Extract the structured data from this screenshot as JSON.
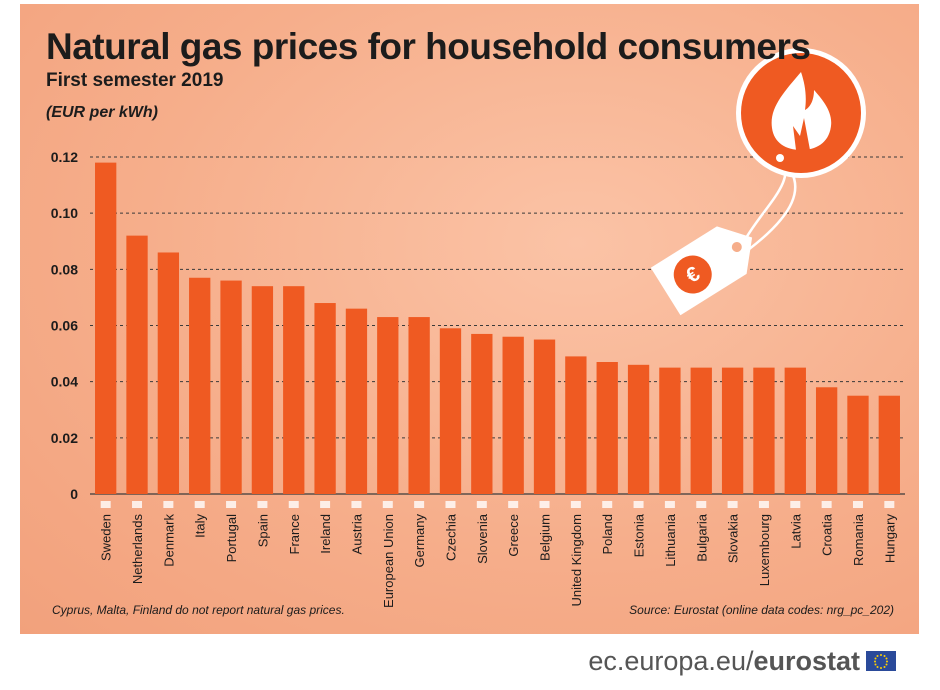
{
  "header": {
    "title": "Natural gas prices for household consumers",
    "subtitle": "First semester 2019",
    "unit": "(EUR per kWh)"
  },
  "footer": {
    "footnote": "Cyprus, Malta, Finland do not report natural gas prices.",
    "source": "Source: Eurostat (online data codes: nrg_pc_202)"
  },
  "brand": {
    "url_prefix": "ec.europa.eu/",
    "name": "eurostat"
  },
  "colors": {
    "bar": "#ef5a22",
    "grid": "#3a3a3a",
    "icon_circle": "#ef5a22",
    "text": "#1c1c1c"
  },
  "chart_data": {
    "type": "bar",
    "title": "Natural gas prices for household consumers",
    "subtitle": "First semester 2019",
    "ylabel": "(EUR per kWh)",
    "xlabel": "",
    "ylim": [
      0,
      0.12
    ],
    "yticks": [
      0,
      0.02,
      0.04,
      0.06,
      0.08,
      0.1,
      0.12
    ],
    "ytick_labels": [
      "0",
      "0.02",
      "0.04",
      "0.06",
      "0.08",
      "0.10",
      "0.12"
    ],
    "grid": "horizontal dashed",
    "categories": [
      "Sweden",
      "Netherlands",
      "Denmark",
      "Italy",
      "Portugal",
      "Spain",
      "France",
      "Ireland",
      "Austria",
      "European Union",
      "Germany",
      "Czechia",
      "Slovenia",
      "Greece",
      "Belgium",
      "United Kingdom",
      "Poland",
      "Estonia",
      "Lithuania",
      "Bulgaria",
      "Slovakia",
      "Luxembourg",
      "Latvia",
      "Croatia",
      "Romania",
      "Hungary"
    ],
    "values": [
      0.118,
      0.092,
      0.086,
      0.077,
      0.076,
      0.074,
      0.074,
      0.068,
      0.066,
      0.063,
      0.063,
      0.059,
      0.057,
      0.056,
      0.055,
      0.049,
      0.047,
      0.046,
      0.045,
      0.045,
      0.045,
      0.045,
      0.045,
      0.038,
      0.035,
      0.035
    ]
  }
}
